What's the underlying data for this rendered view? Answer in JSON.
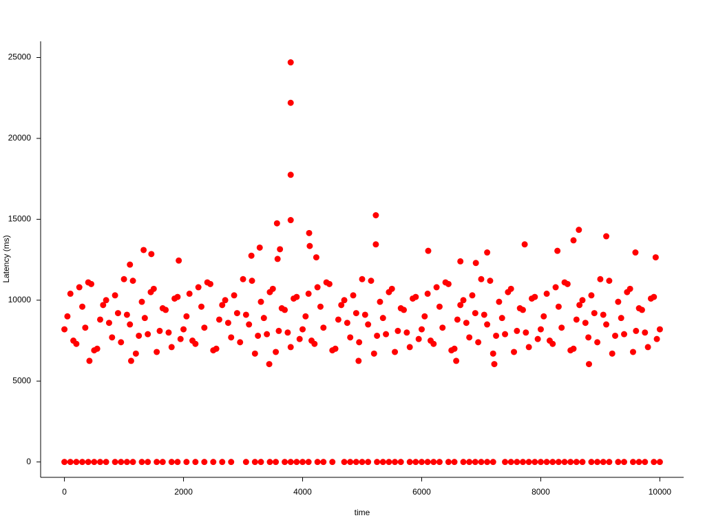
{
  "chart_data": {
    "type": "scatter",
    "xlabel": "time",
    "ylabel": "Latency (ms)",
    "color": "#ff0000",
    "xlim": [
      -400,
      10400
    ],
    "ylim": [
      -950,
      26000
    ],
    "xticks": [
      0,
      2000,
      4000,
      6000,
      8000,
      10000
    ],
    "yticks": [
      0,
      5000,
      10000,
      15000,
      20000,
      25000
    ],
    "x": [
      0,
      100,
      200,
      300,
      400,
      500,
      600,
      700,
      800,
      900,
      1000,
      1100,
      1200,
      1300,
      1400,
      1500,
      1600,
      1700,
      1800,
      1900,
      2000,
      2100,
      2200,
      2300,
      2400,
      2500,
      2600,
      2700,
      2800,
      2900,
      3000,
      3100,
      3200,
      3300,
      3400,
      3500,
      3600,
      3700,
      3800,
      3900,
      4000,
      4100,
      4200,
      4300,
      4400,
      4500,
      4600,
      4700,
      4800,
      4900,
      5000,
      5100,
      5200,
      5300,
      5400,
      5500,
      5600,
      5700,
      5800,
      5900,
      6000,
      6100,
      6200,
      6300,
      6400,
      6500,
      6600,
      6700,
      6800,
      6900,
      7000,
      7100,
      7200,
      7300,
      7400,
      7500,
      7600,
      7700,
      7800,
      7900,
      8000,
      8100,
      8200,
      8300,
      8400,
      8500,
      8600,
      8700,
      8800,
      8900,
      9000,
      9100,
      9200,
      9300,
      9400,
      9500,
      9600,
      9700,
      9800,
      9900,
      10000,
      50,
      150,
      250,
      350,
      450,
      550,
      650,
      750,
      850,
      950,
      1050,
      1150,
      1250,
      1350,
      1450,
      1550,
      1650,
      1750,
      1850,
      1950,
      2050,
      2150,
      2250,
      2350,
      2450,
      2550,
      2650,
      2750,
      2850,
      2950,
      3050,
      3150,
      3250,
      3350,
      3450,
      3550,
      3650,
      3750,
      3850,
      3950,
      4050,
      4150,
      4250,
      4350,
      4450,
      4550,
      4650,
      4750,
      4850,
      4950,
      5050,
      5150,
      5250,
      5350,
      5450,
      5550,
      5650,
      5750,
      5850,
      5950,
      6050,
      6150,
      6250,
      6350,
      6450,
      6550,
      6650,
      6750,
      6850,
      6950,
      7050,
      7150,
      7250,
      7350,
      7450,
      7550,
      7650,
      7750,
      7850,
      7950,
      8050,
      8150,
      8250,
      8350,
      8450,
      8550,
      8650,
      8750,
      8850,
      8950,
      9050,
      9150,
      9250,
      9350,
      9450,
      9550,
      9650,
      9750,
      9850,
      9950,
      3800,
      3800,
      3800,
      3800,
      5230,
      3570,
      4110,
      8640,
      9100,
      1330,
      3280,
      3620,
      5230,
      7730,
      8550,
      4120,
      6110,
      7100,
      9590,
      9930,
      8280,
      1460,
      3140,
      3580,
      4230,
      1920,
      6650,
      6910,
      1100,
      3440,
      7220,
      8810,
      1120,
      4940,
      6580,
      420,
      0,
      100,
      200,
      300,
      400,
      500,
      600,
      700,
      850,
      950,
      1050,
      1150,
      1300,
      1400,
      1550,
      1650,
      1800,
      1900,
      2050,
      2200,
      2350,
      2500,
      2650,
      2800,
      3050,
      3200,
      3300,
      3450,
      3550,
      3700,
      3800,
      3900,
      4000,
      4100,
      4250,
      4350,
      4500,
      4700,
      4800,
      4900,
      5000,
      5100,
      5250,
      5350,
      5450,
      5550,
      5650,
      5800,
      5900,
      6000,
      6100,
      6200,
      6300,
      6450,
      6550,
      6700,
      6800,
      6900,
      7000,
      7100,
      7200,
      7400,
      7500,
      7600,
      7700,
      7800,
      7900,
      8000,
      8100,
      8200,
      8300,
      8400,
      8500,
      8600,
      8700,
      8850,
      8950,
      9050,
      9150,
      9300,
      9400,
      9550,
      9650,
      9750,
      9900,
      10000
    ],
    "values": [
      8200,
      10400,
      7300,
      9600,
      11100,
      6900,
      8800,
      10000,
      7700,
      9200,
      11300,
      8500,
      6700,
      9900,
      7900,
      10700,
      8100,
      9400,
      7100,
      10200,
      8200,
      10400,
      7300,
      9600,
      11100,
      6900,
      8800,
      10000,
      7700,
      9200,
      11300,
      8500,
      6700,
      9900,
      7900,
      10700,
      8100,
      9400,
      7100,
      10200,
      8200,
      10400,
      7300,
      9600,
      11100,
      6900,
      8800,
      10000,
      7700,
      9200,
      11300,
      8500,
      6700,
      9900,
      7900,
      10700,
      8100,
      9400,
      7100,
      10200,
      8200,
      10400,
      7300,
      9600,
      11100,
      6900,
      8800,
      10000,
      7700,
      9200,
      11300,
      8500,
      6700,
      9900,
      7900,
      10700,
      8100,
      9400,
      7100,
      10200,
      8200,
      10400,
      7300,
      9600,
      11100,
      6900,
      8800,
      10000,
      7700,
      9200,
      11300,
      8500,
      6700,
      9900,
      7900,
      10700,
      8100,
      9400,
      7100,
      10200,
      8200,
      9000,
      7500,
      10800,
      8300,
      11000,
      7000,
      9700,
      8600,
      10300,
      7400,
      9100,
      11200,
      7800,
      8900,
      10500,
      6800,
      9500,
      8000,
      10100,
      7600,
      9000,
      7500,
      10800,
      8300,
      11000,
      7000,
      9700,
      8600,
      10300,
      7400,
      9100,
      11200,
      7800,
      8900,
      10500,
      6800,
      9500,
      8000,
      10100,
      7600,
      9000,
      7500,
      10800,
      8300,
      11000,
      7000,
      9700,
      8600,
      10300,
      7400,
      9100,
      11200,
      7800,
      8900,
      10500,
      6800,
      9500,
      8000,
      10100,
      7600,
      9000,
      7500,
      10800,
      8300,
      11000,
      7000,
      9700,
      8600,
      10300,
      7400,
      9100,
      11200,
      7800,
      8900,
      10500,
      6800,
      9500,
      8000,
      10100,
      7600,
      9000,
      7500,
      10800,
      8300,
      11000,
      7000,
      9700,
      8600,
      10300,
      7400,
      9100,
      11200,
      7800,
      8900,
      10500,
      6800,
      9500,
      8000,
      10100,
      7600,
      24700,
      22200,
      17750,
      14950,
      15250,
      14750,
      14150,
      14350,
      13950,
      13100,
      13250,
      13150,
      13450,
      13450,
      13700,
      13350,
      13050,
      12950,
      12950,
      12650,
      13050,
      12850,
      12750,
      12550,
      12650,
      12450,
      12400,
      12300,
      12200,
      6050,
      6050,
      6050,
      6250,
      6250,
      6250,
      6250,
      0,
      0,
      0,
      0,
      0,
      0,
      0,
      0,
      0,
      0,
      0,
      0,
      0,
      0,
      0,
      0,
      0,
      0,
      0,
      0,
      0,
      0,
      0,
      0,
      0,
      0,
      0,
      0,
      0,
      0,
      0,
      0,
      0,
      0,
      0,
      0,
      0,
      0,
      0,
      0,
      0,
      0,
      0,
      0,
      0,
      0,
      0,
      0,
      0,
      0,
      0,
      0,
      0,
      0,
      0,
      0,
      0,
      0,
      0,
      0,
      0,
      0,
      0,
      0,
      0,
      0,
      0,
      0,
      0,
      0,
      0,
      0,
      0,
      0,
      0,
      0,
      0,
      0,
      0,
      0,
      0,
      0,
      0,
      0,
      0,
      0
    ]
  }
}
